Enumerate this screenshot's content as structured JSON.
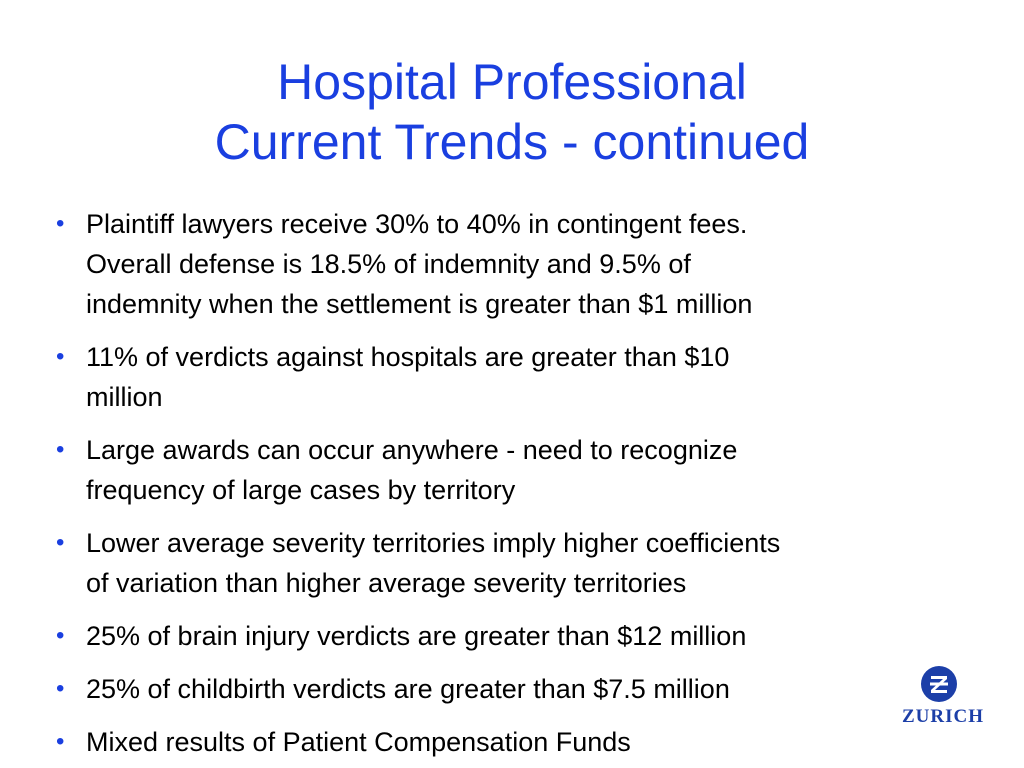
{
  "slide": {
    "title_line1": "Hospital Professional",
    "title_line2": "Current Trends - continued",
    "bullets": [
      {
        "lines": [
          "Plaintiff lawyers receive 30% to 40% in contingent fees.",
          "Overall defense is 18.5% of indemnity and 9.5% of",
          "indemnity when the settlement is greater than $1 million"
        ]
      },
      {
        "lines": [
          "11% of verdicts against hospitals are greater than $10",
          "million"
        ]
      },
      {
        "lines": [
          "Large awards can occur anywhere - need to recognize",
          "frequency of large cases by territory"
        ]
      },
      {
        "lines": [
          "Lower average severity territories imply higher coefficients",
          "of variation than higher average severity territories"
        ]
      },
      {
        "lines": [
          "25% of brain injury verdicts are greater than $12 million"
        ]
      },
      {
        "lines": [
          "25% of childbirth verdicts are greater than $7.5 million"
        ]
      },
      {
        "lines": [
          "Mixed results of Patient Compensation Funds"
        ]
      }
    ],
    "bullet_symbol": "•",
    "logo_text": "ZURICH",
    "title_color": "#1a3fe0",
    "logo_color": "#1c3fa8"
  }
}
